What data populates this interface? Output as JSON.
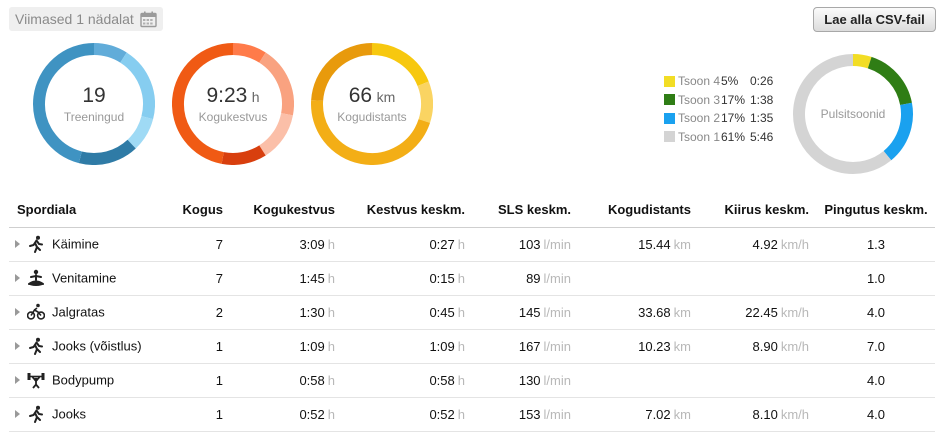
{
  "period": {
    "label": "Viimased 1 nädalat",
    "icon": "calendar-icon"
  },
  "csv_button": {
    "label": "Lae alla CSV-fail"
  },
  "summary": [
    {
      "value": "19",
      "unit": "",
      "label": "Treeningud",
      "colors": [
        "#2f7ba6",
        "#3f93c2",
        "#61acd9",
        "#86cdf0",
        "#9fdaf5"
      ]
    },
    {
      "value": "9:23",
      "unit": "h",
      "label": "Kogukestvus",
      "colors": [
        "#f05a14",
        "#d83f0e",
        "#ff7b4a",
        "#f9a280",
        "#fbbfa8"
      ]
    },
    {
      "value": "66",
      "unit": "km",
      "label": "Kogudistants",
      "colors": [
        "#e89a0c",
        "#f3ae16",
        "#f7c80f",
        "#fad462"
      ]
    }
  ],
  "zones": {
    "label": "Pulsitsoonid",
    "items": [
      {
        "name": "Tsoon 4",
        "pct": "5%",
        "time": "0:26",
        "color": "#f2dd25"
      },
      {
        "name": "Tsoon 3",
        "pct": "17%",
        "time": "1:38",
        "color": "#2f7d15"
      },
      {
        "name": "Tsoon 2",
        "pct": "17%",
        "time": "1:35",
        "color": "#1aa1ef"
      },
      {
        "name": "Tsoon 1",
        "pct": "61%",
        "time": "5:46",
        "color": "#d4d4d4"
      }
    ]
  },
  "table": {
    "headers": [
      "Spordiala",
      "Kogus",
      "Kogukestvus",
      "Kestvus keskm.",
      "SLS keskm.",
      "Kogudistants",
      "Kiirus keskm.",
      "Pingutus keskm."
    ],
    "rows": [
      {
        "icon": "running-icon",
        "sport": "Käimine",
        "count": "7",
        "duration": "3:09",
        "duration_unit": "h",
        "avg": "0:27",
        "avg_unit": "h",
        "hr": "103",
        "hr_unit": "l/min",
        "distance": "15.44",
        "distance_unit": "km",
        "speed": "4.92",
        "speed_unit": "km/h",
        "effort": "1.3"
      },
      {
        "icon": "meditation-icon",
        "sport": "Venitamine",
        "count": "7",
        "duration": "1:45",
        "duration_unit": "h",
        "avg": "0:15",
        "avg_unit": "h",
        "hr": "89",
        "hr_unit": "l/min",
        "distance": "",
        "distance_unit": "",
        "speed": "",
        "speed_unit": "",
        "effort": "1.0"
      },
      {
        "icon": "bicycle-icon",
        "sport": "Jalgratas",
        "count": "2",
        "duration": "1:30",
        "duration_unit": "h",
        "avg": "0:45",
        "avg_unit": "h",
        "hr": "145",
        "hr_unit": "l/min",
        "distance": "33.68",
        "distance_unit": "km",
        "speed": "22.45",
        "speed_unit": "km/h",
        "effort": "4.0"
      },
      {
        "icon": "running-icon",
        "sport": "Jooks (võistlus)",
        "count": "1",
        "duration": "1:09",
        "duration_unit": "h",
        "avg": "1:09",
        "avg_unit": "h",
        "hr": "167",
        "hr_unit": "l/min",
        "distance": "10.23",
        "distance_unit": "km",
        "speed": "8.90",
        "speed_unit": "km/h",
        "effort": "7.0"
      },
      {
        "icon": "weightlifting-icon",
        "sport": "Bodypump",
        "count": "1",
        "duration": "0:58",
        "duration_unit": "h",
        "avg": "0:58",
        "avg_unit": "h",
        "hr": "130",
        "hr_unit": "l/min",
        "distance": "",
        "distance_unit": "",
        "speed": "",
        "speed_unit": "",
        "effort": "4.0"
      },
      {
        "icon": "running-icon",
        "sport": "Jooks",
        "count": "1",
        "duration": "0:52",
        "duration_unit": "h",
        "avg": "0:52",
        "avg_unit": "h",
        "hr": "153",
        "hr_unit": "l/min",
        "distance": "7.02",
        "distance_unit": "km",
        "speed": "8.10",
        "speed_unit": "km/h",
        "effort": "4.0"
      }
    ]
  }
}
